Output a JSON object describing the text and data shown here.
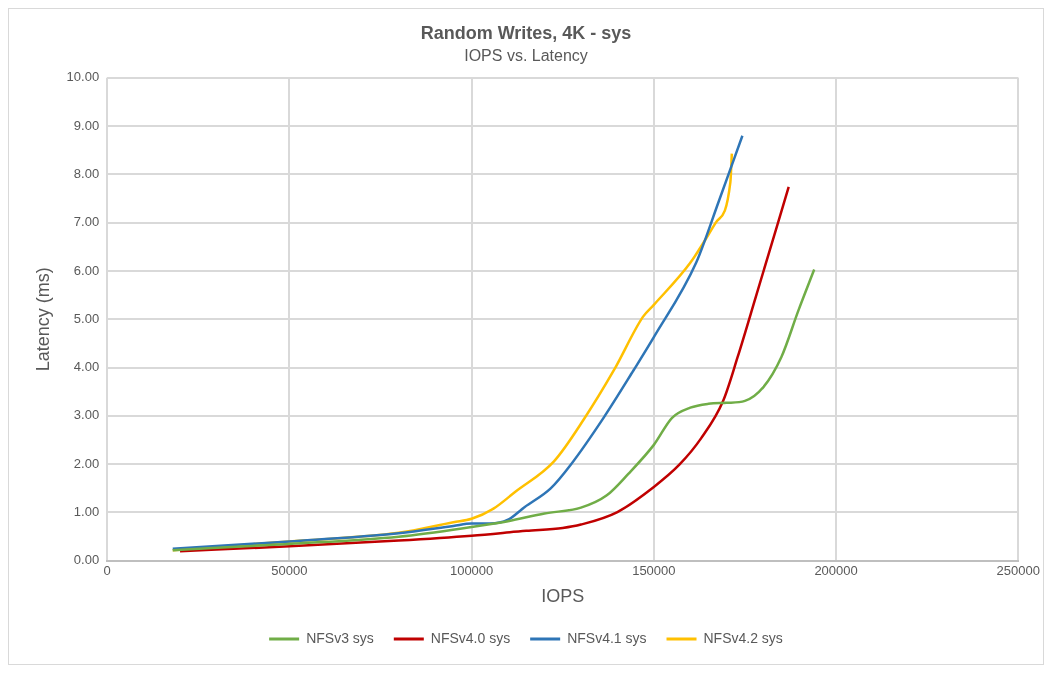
{
  "chart_data": {
    "type": "line",
    "title": "Random Writes, 4K - sys",
    "subtitle": "IOPS vs. Latency",
    "xlabel": "IOPS",
    "ylabel": "Latency (ms)",
    "xlim": [
      0,
      250000
    ],
    "xticks": [
      0,
      50000,
      100000,
      150000,
      200000,
      250000
    ],
    "ylim": [
      0,
      10
    ],
    "yticks": [
      {
        "value": 0,
        "label": "0.00"
      },
      {
        "value": 1,
        "label": "1.00"
      },
      {
        "value": 2,
        "label": "2.00"
      },
      {
        "value": 3,
        "label": "3.00"
      },
      {
        "value": 4,
        "label": "4.00"
      },
      {
        "value": 5,
        "label": "5.00"
      },
      {
        "value": 6,
        "label": "6.00"
      },
      {
        "value": 7,
        "label": "7.00"
      },
      {
        "value": 8,
        "label": "8.00"
      },
      {
        "value": 9,
        "label": "9.00"
      },
      {
        "value": 10,
        "label": "10.00"
      }
    ],
    "grid": true,
    "legend": "bottom",
    "marker": "none",
    "line_style": "solid",
    "series": [
      {
        "name": "NFSv3 sys",
        "color": "#70ad47",
        "x": [
          18000,
          50000,
          80000,
          100000,
          110000,
          120000,
          130000,
          137000,
          143000,
          150000,
          155000,
          160000,
          165000,
          170000,
          175000,
          180000,
          185000,
          189700,
          194000
        ],
        "values": [
          0.22,
          0.35,
          0.5,
          0.7,
          0.82,
          0.98,
          1.1,
          1.35,
          1.8,
          2.4,
          2.96,
          3.17,
          3.25,
          3.27,
          3.31,
          3.59,
          4.22,
          5.19,
          6.03
        ]
      },
      {
        "name": "NFSv4.0 sys",
        "color": "#c00000",
        "x": [
          20000,
          50000,
          80000,
          100000,
          115000,
          125000,
          130000,
          140000,
          150000,
          157000,
          163000,
          169000,
          173000,
          178000,
          187000
        ],
        "values": [
          0.2,
          0.3,
          0.42,
          0.52,
          0.62,
          0.68,
          0.75,
          1.01,
          1.53,
          1.99,
          2.54,
          3.31,
          4.22,
          5.47,
          7.74
        ]
      },
      {
        "name": "NFSv4.1 sys",
        "color": "#2e75b6",
        "x": [
          18000,
          50000,
          80000,
          95000,
          100000,
          105000,
          110000,
          114500,
          121700,
          127200,
          136200,
          144400,
          150000,
          161600,
          167900,
          174300
        ],
        "values": [
          0.25,
          0.4,
          0.57,
          0.72,
          0.77,
          0.77,
          0.85,
          1.11,
          1.5,
          1.99,
          2.96,
          3.94,
          4.63,
          6.17,
          7.46,
          8.8
        ]
      },
      {
        "name": "NFSv4.2 sys",
        "color": "#ffc000",
        "x": [
          18000,
          50000,
          80000,
          95000,
          100000,
          106000,
          112000,
          122600,
          130800,
          139000,
          147000,
          150000,
          160000,
          167000,
          171000,
          171400
        ],
        "values": [
          0.22,
          0.4,
          0.58,
          0.8,
          0.87,
          1.08,
          1.43,
          2.06,
          2.93,
          3.94,
          5.05,
          5.3,
          6.17,
          7.0,
          7.84,
          8.43
        ]
      }
    ]
  }
}
